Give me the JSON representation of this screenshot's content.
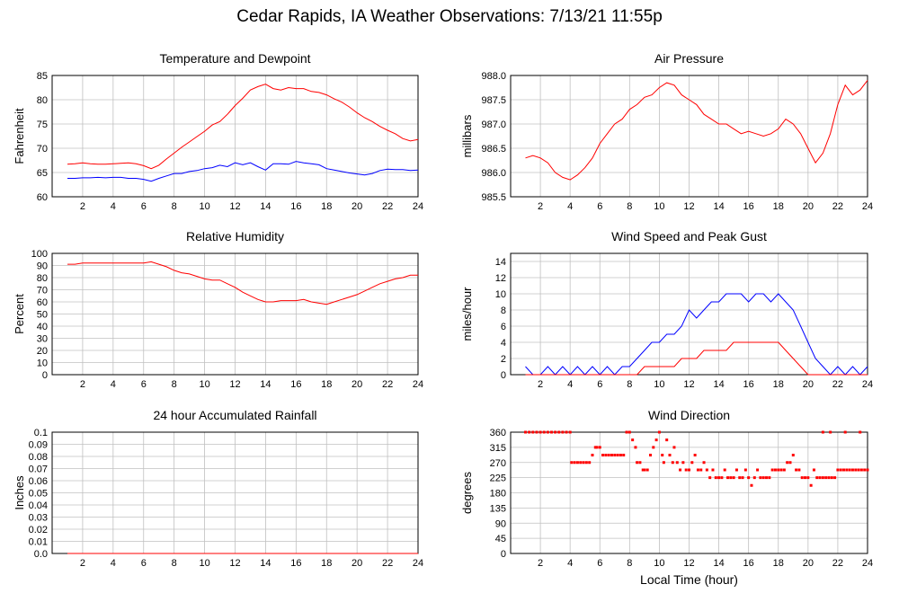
{
  "page": {
    "title": "Cedar Rapids, IA Weather Observations: 7/13/21 11:55p"
  },
  "chart_data": [
    {
      "type": "line",
      "title": "Temperature and Dewpoint",
      "ylabel": "Fahrenheit",
      "xlabel": "",
      "xlim": [
        0,
        24
      ],
      "ylim": [
        60,
        85
      ],
      "xticks": [
        0,
        2,
        4,
        6,
        8,
        10,
        12,
        14,
        16,
        18,
        20,
        22,
        24
      ],
      "yticks": [
        60,
        65,
        70,
        75,
        80,
        85
      ],
      "ytick_labels": [
        "60",
        "65",
        "70",
        "75",
        "80",
        "85"
      ],
      "grid": true,
      "series": [
        {
          "color": "#ff0000",
          "x": [
            1.0,
            1.5,
            2.0,
            2.5,
            3.0,
            3.5,
            4.0,
            4.5,
            5.0,
            5.5,
            6.0,
            6.5,
            7.0,
            7.5,
            8.0,
            8.5,
            9.0,
            9.5,
            10.0,
            10.5,
            11.0,
            11.5,
            12.0,
            12.5,
            13.0,
            13.5,
            14.0,
            14.5,
            15.0,
            15.5,
            16.0,
            16.5,
            17.0,
            17.5,
            18.0,
            18.5,
            19.0,
            19.5,
            20.0,
            20.5,
            21.0,
            21.5,
            22.0,
            22.5,
            23.0,
            23.5,
            24.0
          ],
          "y": [
            66.7,
            66.8,
            67.0,
            66.8,
            66.7,
            66.7,
            66.8,
            66.9,
            67.0,
            66.8,
            66.4,
            65.8,
            66.5,
            67.8,
            69.0,
            70.2,
            71.3,
            72.4,
            73.5,
            74.8,
            75.5,
            77.0,
            78.8,
            80.3,
            82.0,
            82.7,
            83.2,
            82.3,
            82.0,
            82.5,
            82.3,
            82.3,
            81.7,
            81.5,
            81.0,
            80.2,
            79.5,
            78.5,
            77.3,
            76.3,
            75.5,
            74.5,
            73.7,
            73.0,
            72.0,
            71.5,
            71.8
          ]
        },
        {
          "color": "#0000ff",
          "x": [
            1.0,
            1.5,
            2.0,
            2.5,
            3.0,
            3.5,
            4.0,
            4.5,
            5.0,
            5.5,
            6.0,
            6.5,
            7.0,
            7.5,
            8.0,
            8.5,
            9.0,
            9.5,
            10.0,
            10.5,
            11.0,
            11.5,
            12.0,
            12.5,
            13.0,
            13.5,
            14.0,
            14.5,
            15.0,
            15.5,
            16.0,
            16.5,
            17.0,
            17.5,
            18.0,
            18.5,
            19.0,
            19.5,
            20.0,
            20.5,
            21.0,
            21.5,
            22.0,
            22.5,
            23.0,
            23.5,
            24.0
          ],
          "y": [
            63.8,
            63.8,
            63.9,
            63.9,
            64.0,
            63.9,
            64.0,
            64.0,
            63.8,
            63.8,
            63.6,
            63.2,
            63.8,
            64.3,
            64.8,
            64.8,
            65.2,
            65.4,
            65.8,
            66.0,
            66.5,
            66.2,
            67.0,
            66.6,
            67.0,
            66.2,
            65.5,
            66.8,
            66.8,
            66.7,
            67.3,
            67.0,
            66.8,
            66.6,
            65.8,
            65.5,
            65.2,
            64.9,
            64.7,
            64.5,
            64.8,
            65.4,
            65.7,
            65.6,
            65.6,
            65.4,
            65.5
          ]
        }
      ]
    },
    {
      "type": "line",
      "title": "Air Pressure",
      "ylabel": "millibars",
      "xlabel": "",
      "xlim": [
        0,
        24
      ],
      "ylim": [
        985.5,
        988.0
      ],
      "xticks": [
        0,
        2,
        4,
        6,
        8,
        10,
        12,
        14,
        16,
        18,
        20,
        22,
        24
      ],
      "yticks": [
        985.5,
        986.0,
        986.5,
        987.0,
        987.5,
        988.0
      ],
      "ytick_labels": [
        "985.5",
        "986.0",
        "986.5",
        "987.0",
        "987.5",
        "988.0"
      ],
      "grid": true,
      "series": [
        {
          "color": "#ff0000",
          "x": [
            1.0,
            1.5,
            2.0,
            2.5,
            3.0,
            3.5,
            4.0,
            4.5,
            5.0,
            5.5,
            6.0,
            6.5,
            7.0,
            7.5,
            8.0,
            8.5,
            9.0,
            9.5,
            10.0,
            10.5,
            11.0,
            11.5,
            12.0,
            12.5,
            13.0,
            13.5,
            14.0,
            14.5,
            15.0,
            15.5,
            16.0,
            16.5,
            17.0,
            17.5,
            18.0,
            18.5,
            19.0,
            19.5,
            20.0,
            20.5,
            21.0,
            21.5,
            22.0,
            22.5,
            23.0,
            23.5,
            24.0
          ],
          "y": [
            986.3,
            986.35,
            986.3,
            986.2,
            986.0,
            985.9,
            985.85,
            985.95,
            986.1,
            986.3,
            986.6,
            986.8,
            987.0,
            987.1,
            987.3,
            987.4,
            987.55,
            987.6,
            987.75,
            987.85,
            987.8,
            987.6,
            987.5,
            987.4,
            987.2,
            987.1,
            987.0,
            987.0,
            986.9,
            986.8,
            986.85,
            986.8,
            986.75,
            986.8,
            986.9,
            987.1,
            987.0,
            986.8,
            986.5,
            986.2,
            986.4,
            986.8,
            987.4,
            987.8,
            987.6,
            987.7,
            987.9
          ]
        }
      ]
    },
    {
      "type": "line",
      "title": "Relative Humidity",
      "ylabel": "Percent",
      "xlabel": "",
      "xlim": [
        0,
        24
      ],
      "ylim": [
        0,
        100
      ],
      "xticks": [
        0,
        2,
        4,
        6,
        8,
        10,
        12,
        14,
        16,
        18,
        20,
        22,
        24
      ],
      "yticks": [
        0,
        10,
        20,
        30,
        40,
        50,
        60,
        70,
        80,
        90,
        100
      ],
      "ytick_labels": [
        "0",
        "10",
        "20",
        "30",
        "40",
        "50",
        "60",
        "70",
        "80",
        "90",
        "100"
      ],
      "grid": true,
      "series": [
        {
          "color": "#ff0000",
          "x": [
            1.0,
            1.5,
            2.0,
            2.5,
            3.0,
            3.5,
            4.0,
            4.5,
            5.0,
            5.5,
            6.0,
            6.5,
            7.0,
            7.5,
            8.0,
            8.5,
            9.0,
            9.5,
            10.0,
            10.5,
            11.0,
            11.5,
            12.0,
            12.5,
            13.0,
            13.5,
            14.0,
            14.5,
            15.0,
            15.5,
            16.0,
            16.5,
            17.0,
            17.5,
            18.0,
            18.5,
            19.0,
            19.5,
            20.0,
            20.5,
            21.0,
            21.5,
            22.0,
            22.5,
            23.0,
            23.5,
            24.0
          ],
          "y": [
            91,
            91,
            92,
            92,
            92,
            92,
            92,
            92,
            92,
            92,
            92,
            93,
            91,
            89,
            86,
            84,
            83,
            81,
            79,
            78,
            78,
            75,
            72,
            68,
            65,
            62,
            60,
            60,
            61,
            61,
            61,
            62,
            60,
            59,
            58,
            60,
            62,
            64,
            66,
            69,
            72,
            75,
            77,
            79,
            80,
            82,
            82
          ]
        }
      ]
    },
    {
      "type": "line",
      "title": "Wind Speed and Peak Gust",
      "ylabel": "miles/hour",
      "xlabel": "",
      "xlim": [
        0,
        24
      ],
      "ylim": [
        0,
        15
      ],
      "xticks": [
        0,
        2,
        4,
        6,
        8,
        10,
        12,
        14,
        16,
        18,
        20,
        22,
        24
      ],
      "yticks": [
        0,
        2,
        4,
        6,
        8,
        10,
        12,
        14
      ],
      "ytick_labels": [
        "0",
        "2",
        "4",
        "6",
        "8",
        "10",
        "12",
        "14"
      ],
      "grid": true,
      "series": [
        {
          "color": "#0000ff",
          "x": [
            1.0,
            1.5,
            2.0,
            2.5,
            3.0,
            3.5,
            4.0,
            4.5,
            5.0,
            5.5,
            6.0,
            6.5,
            7.0,
            7.5,
            8.0,
            8.5,
            9.0,
            9.5,
            10.0,
            10.5,
            11.0,
            11.5,
            12.0,
            12.5,
            13.0,
            13.5,
            14.0,
            14.5,
            15.0,
            15.5,
            16.0,
            16.5,
            17.0,
            17.5,
            18.0,
            18.5,
            19.0,
            19.5,
            20.0,
            20.5,
            21.0,
            21.5,
            22.0,
            22.5,
            23.0,
            23.5,
            24.0
          ],
          "y": [
            1,
            0,
            0,
            1,
            0,
            1,
            0,
            1,
            0,
            1,
            0,
            1,
            0,
            1,
            1,
            2,
            3,
            4,
            4,
            5,
            5,
            6,
            8,
            7,
            8,
            9,
            9,
            10,
            10,
            10,
            9,
            10,
            10,
            9,
            10,
            9,
            8,
            6,
            4,
            2,
            1,
            0,
            1,
            0,
            1,
            0,
            1
          ]
        },
        {
          "color": "#ff0000",
          "x": [
            1.0,
            1.5,
            2.0,
            2.5,
            3.0,
            3.5,
            4.0,
            4.5,
            5.0,
            5.5,
            6.0,
            6.5,
            7.0,
            7.5,
            8.0,
            8.5,
            9.0,
            9.5,
            10.0,
            10.5,
            11.0,
            11.5,
            12.0,
            12.5,
            13.0,
            13.5,
            14.0,
            14.5,
            15.0,
            15.5,
            16.0,
            16.5,
            17.0,
            17.5,
            18.0,
            18.5,
            19.0,
            19.5,
            20.0,
            20.5,
            21.0,
            21.5,
            22.0,
            22.5,
            23.0,
            23.5,
            24.0
          ],
          "y": [
            0,
            0,
            0,
            0,
            0,
            0,
            0,
            0,
            0,
            0,
            0,
            0,
            0,
            0,
            0,
            0,
            1,
            1,
            1,
            1,
            1,
            2,
            2,
            2,
            3,
            3,
            3,
            3,
            4,
            4,
            4,
            4,
            4,
            4,
            4,
            3,
            2,
            1,
            0,
            0,
            0,
            0,
            0,
            0,
            0,
            0,
            0
          ]
        }
      ]
    },
    {
      "type": "line",
      "title": "24 hour Accumulated Rainfall",
      "ylabel": "Inches",
      "xlabel": "",
      "xlim": [
        0,
        24
      ],
      "ylim": [
        0,
        0.1
      ],
      "xticks": [
        0,
        2,
        4,
        6,
        8,
        10,
        12,
        14,
        16,
        18,
        20,
        22,
        24
      ],
      "yticks": [
        0,
        0.01,
        0.02,
        0.03,
        0.04,
        0.05,
        0.06,
        0.07,
        0.08,
        0.09,
        0.1
      ],
      "ytick_labels": [
        "0.0",
        "0.01",
        "0.02",
        "0.03",
        "0.04",
        "0.05",
        "0.06",
        "0.07",
        "0.08",
        "0.09",
        "0.1"
      ],
      "grid": true,
      "series": [
        {
          "color": "#ff0000",
          "x": [
            1.0,
            24.0
          ],
          "y": [
            0,
            0
          ]
        }
      ]
    },
    {
      "type": "scatter",
      "title": "Wind Direction",
      "ylabel": "degrees",
      "xlabel": "Local Time (hour)",
      "xlim": [
        0,
        24
      ],
      "ylim": [
        0,
        360
      ],
      "xticks": [
        0,
        2,
        4,
        6,
        8,
        10,
        12,
        14,
        16,
        18,
        20,
        22,
        24
      ],
      "yticks": [
        0,
        45,
        90,
        135,
        180,
        225,
        270,
        315,
        360
      ],
      "ytick_labels": [
        "0",
        "45",
        "90",
        "135",
        "180",
        "225",
        "270",
        "315",
        "360"
      ],
      "grid": true,
      "series": [
        {
          "color": "#ff0000",
          "x": [
            1.0,
            1.25,
            1.5,
            1.75,
            2.0,
            2.25,
            2.5,
            2.75,
            3.0,
            3.25,
            3.5,
            3.75,
            4.0,
            4.1,
            4.3,
            4.5,
            4.7,
            4.9,
            5.1,
            5.3,
            5.5,
            5.7,
            5.8,
            6.0,
            6.2,
            6.4,
            6.6,
            6.8,
            7.0,
            7.2,
            7.4,
            7.6,
            7.8,
            8.0,
            8.2,
            8.4,
            8.5,
            8.7,
            8.9,
            9.0,
            9.2,
            9.4,
            9.6,
            9.8,
            10.0,
            10.2,
            10.3,
            10.5,
            10.7,
            10.9,
            11.0,
            11.2,
            11.4,
            11.6,
            11.8,
            12.0,
            12.2,
            12.4,
            12.6,
            12.8,
            13.0,
            13.2,
            13.4,
            13.6,
            13.8,
            14.0,
            14.2,
            14.4,
            14.6,
            14.8,
            15.0,
            15.2,
            15.4,
            15.6,
            15.8,
            16.0,
            16.2,
            16.4,
            16.6,
            16.8,
            17.0,
            17.2,
            17.4,
            17.6,
            17.8,
            18.0,
            18.2,
            18.4,
            18.6,
            18.8,
            19.0,
            19.2,
            19.4,
            19.6,
            19.8,
            20.0,
            20.2,
            20.4,
            20.6,
            20.8,
            21.0,
            21.2,
            21.4,
            21.6,
            21.8,
            22.0,
            22.2,
            22.4,
            22.6,
            22.8,
            23.0,
            23.2,
            23.4,
            23.6,
            23.8,
            24.0,
            21.0,
            21.5,
            22.5,
            23.5
          ],
          "y": [
            360,
            360,
            360,
            360,
            360,
            360,
            360,
            360,
            360,
            360,
            360,
            360,
            360,
            270,
            270,
            270,
            270,
            270,
            270,
            270,
            292,
            315,
            315,
            315,
            292,
            292,
            292,
            292,
            292,
            292,
            292,
            292,
            360,
            360,
            337,
            315,
            270,
            270,
            248,
            248,
            248,
            292,
            315,
            337,
            360,
            292,
            270,
            337,
            292,
            270,
            315,
            270,
            248,
            270,
            248,
            248,
            270,
            292,
            248,
            248,
            270,
            248,
            225,
            248,
            225,
            225,
            225,
            248,
            225,
            225,
            225,
            248,
            225,
            225,
            248,
            225,
            202,
            225,
            248,
            225,
            225,
            225,
            225,
            248,
            248,
            248,
            248,
            248,
            270,
            270,
            292,
            248,
            248,
            225,
            225,
            225,
            202,
            248,
            225,
            225,
            225,
            225,
            225,
            225,
            225,
            248,
            248,
            248,
            248,
            248,
            248,
            248,
            248,
            248,
            248,
            248,
            360,
            360,
            360,
            360
          ]
        }
      ]
    }
  ]
}
